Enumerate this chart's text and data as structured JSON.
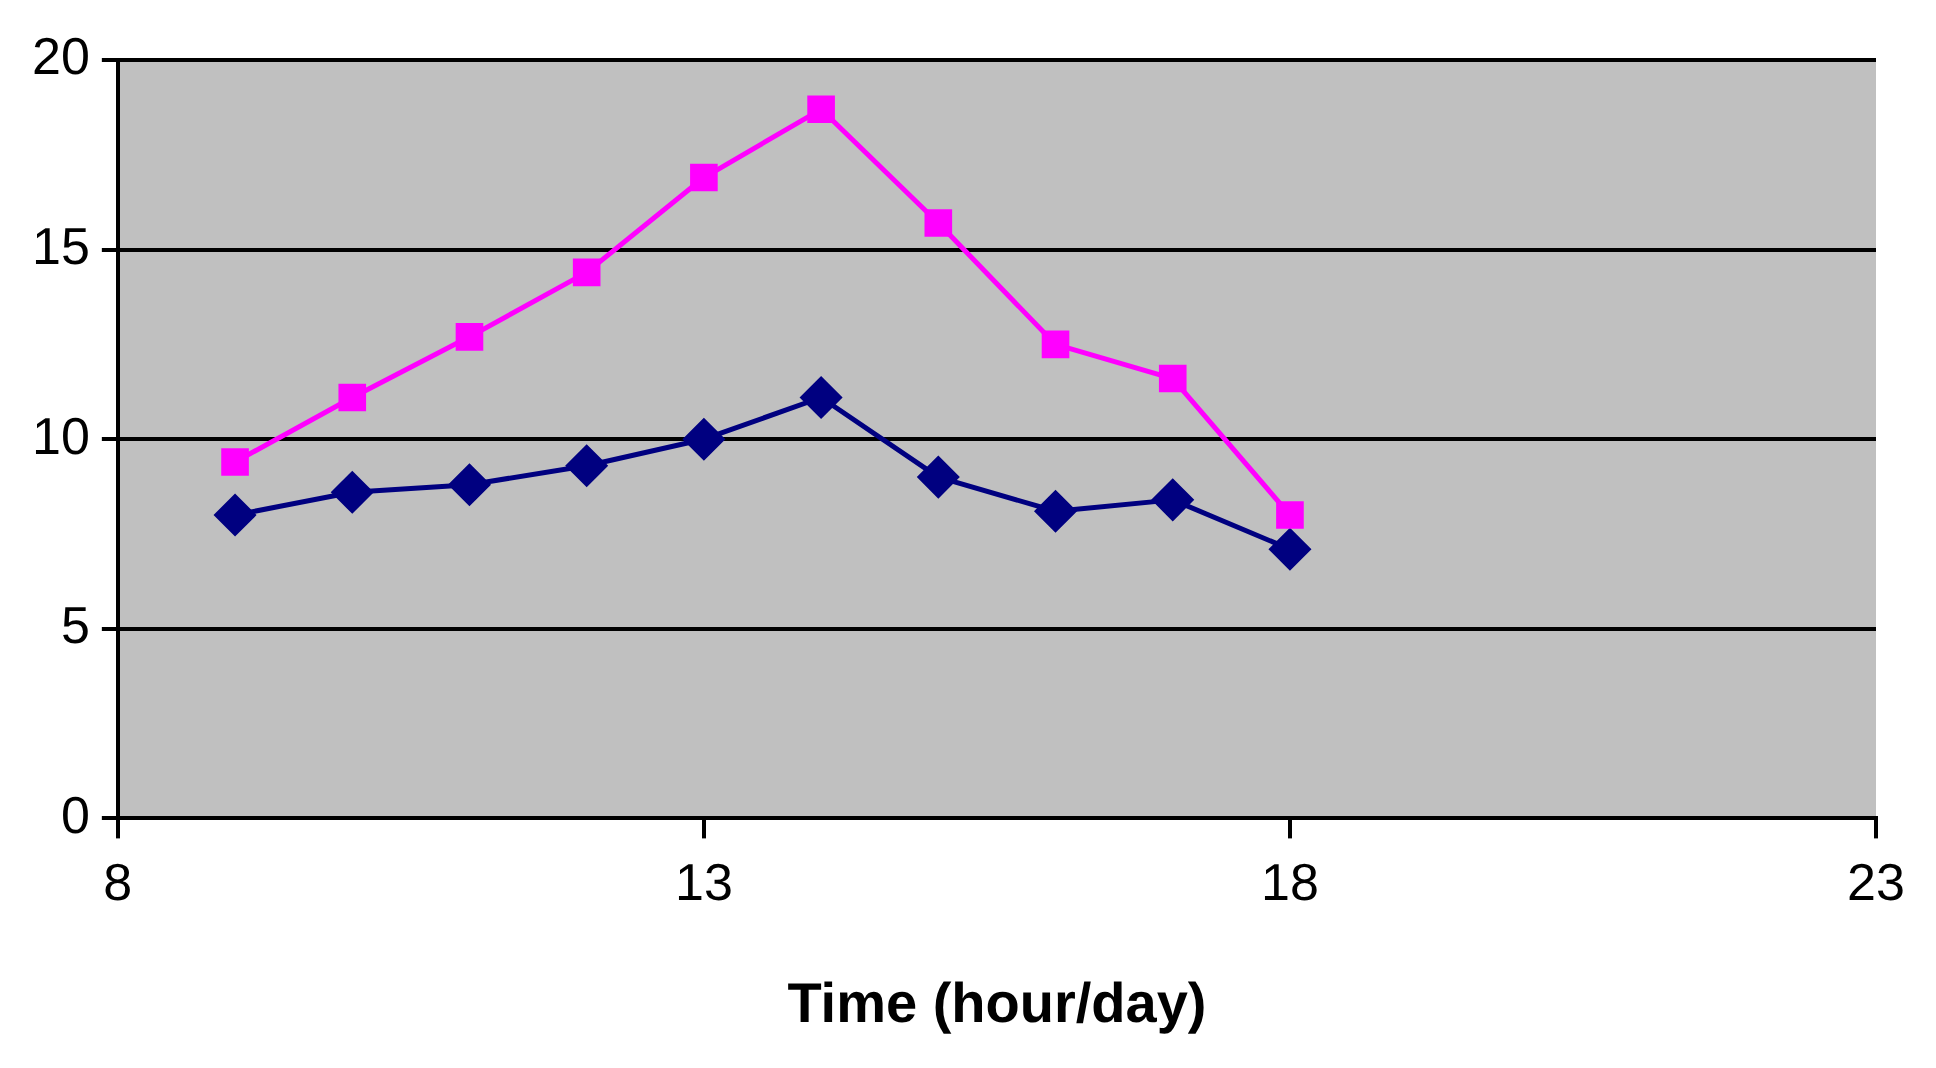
{
  "chart_data": {
    "type": "line",
    "xlabel": "Time (hour/day)",
    "x": [
      9,
      10,
      11,
      12,
      13,
      14,
      15,
      16,
      17,
      18
    ],
    "series": [
      {
        "color": "#ff00ff",
        "marker": "square",
        "values": [
          9.4,
          11.1,
          12.7,
          14.4,
          16.9,
          18.7,
          15.7,
          12.5,
          11.6,
          8.0
        ]
      },
      {
        "color": "#000080",
        "marker": "diamond",
        "values": [
          8.0,
          8.6,
          8.8,
          9.3,
          10.0,
          11.1,
          9.0,
          8.1,
          8.4,
          7.1
        ]
      }
    ],
    "xlim": [
      8,
      23
    ],
    "xticks": [
      8,
      13,
      18,
      23
    ],
    "ylim": [
      0,
      20
    ],
    "yticks": [
      0,
      5,
      10,
      15,
      20
    ],
    "grid": "y",
    "legend": false,
    "line_style": "solid"
  }
}
